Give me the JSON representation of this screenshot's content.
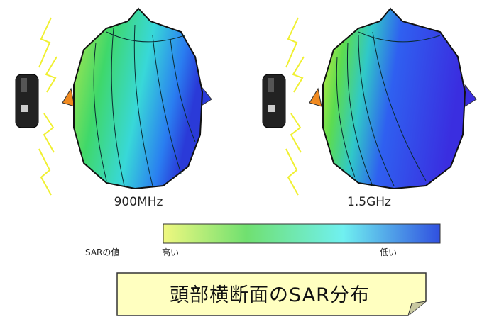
{
  "figures": [
    {
      "label": "900MHz"
    },
    {
      "label": "1.5GHz"
    }
  ],
  "color_scale": {
    "title": "SARの値",
    "high": "高い",
    "low": "低い"
  },
  "caption": "頭部横断面のSAR分布"
}
